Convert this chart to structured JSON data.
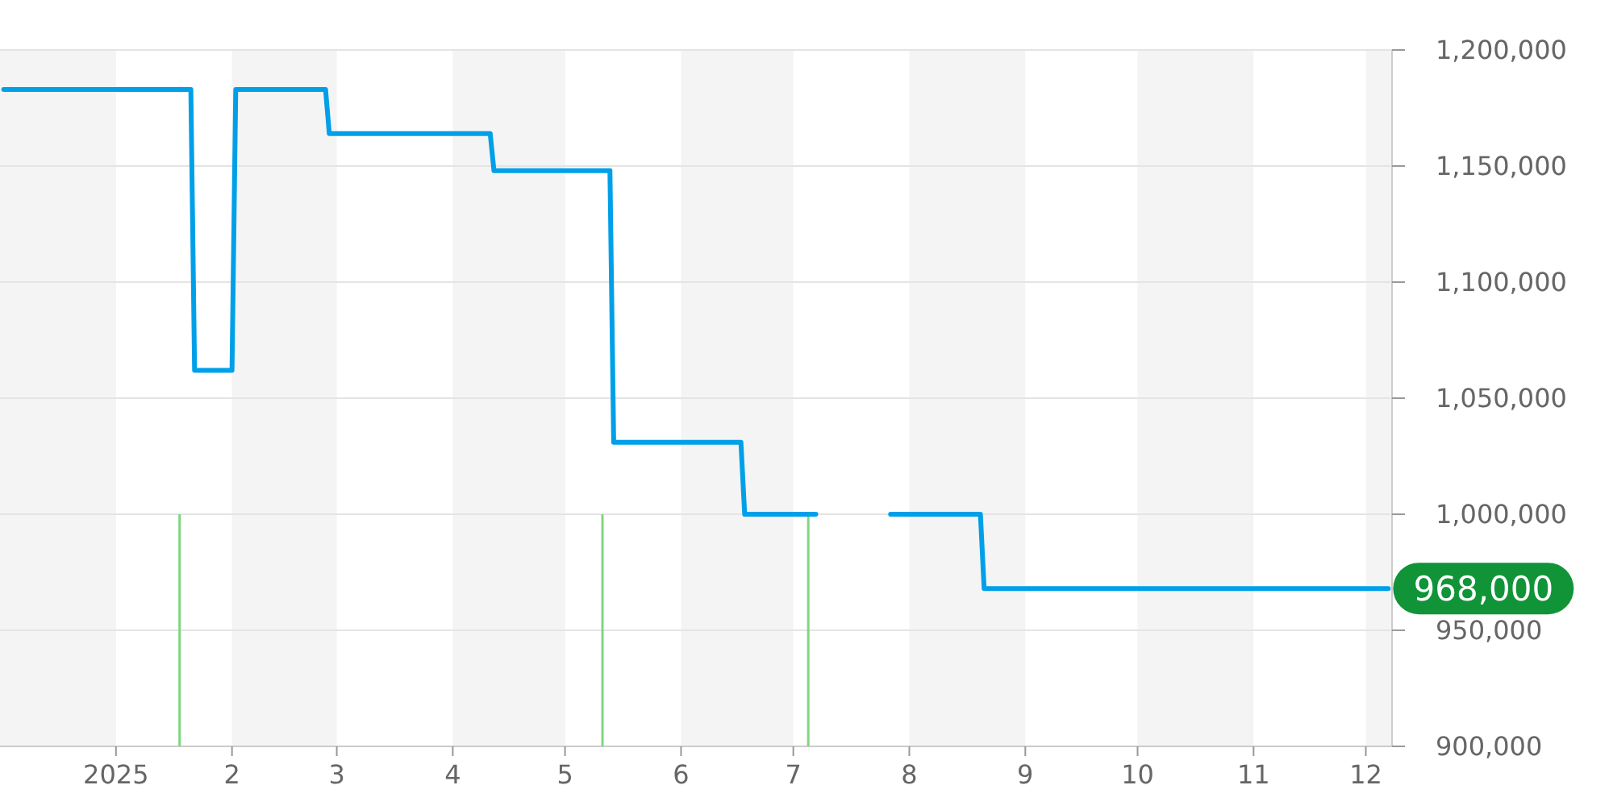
{
  "chart_data": {
    "type": "line",
    "xlim": [
      "2024-12-01",
      "2025-12-08"
    ],
    "ylim": [
      900000,
      1200000
    ],
    "xticks": [
      {
        "value": "2025-01-01",
        "label": "2025"
      },
      {
        "value": "2025-02-01",
        "label": "2"
      },
      {
        "value": "2025-03-01",
        "label": "3"
      },
      {
        "value": "2025-04-01",
        "label": "4"
      },
      {
        "value": "2025-05-01",
        "label": "5"
      },
      {
        "value": "2025-06-01",
        "label": "6"
      },
      {
        "value": "2025-07-01",
        "label": "7"
      },
      {
        "value": "2025-08-01",
        "label": "8"
      },
      {
        "value": "2025-09-01",
        "label": "9"
      },
      {
        "value": "2025-10-01",
        "label": "10"
      },
      {
        "value": "2025-11-01",
        "label": "11"
      },
      {
        "value": "2025-12-01",
        "label": "12"
      }
    ],
    "yticks": [
      {
        "value": 900000,
        "label": "900,000"
      },
      {
        "value": 950000,
        "label": "950,000"
      },
      {
        "value": 1000000,
        "label": "1,000,000"
      },
      {
        "value": 1050000,
        "label": "1,050,000"
      },
      {
        "value": 1100000,
        "label": "1,100,000"
      },
      {
        "value": 1150000,
        "label": "1,150,000"
      },
      {
        "value": 1200000,
        "label": "1,200,000"
      }
    ],
    "grid": "y",
    "bands": [
      {
        "axis": "x",
        "from": "2024-12-01",
        "to": "2025-01-01",
        "color": "#f4f4f4"
      },
      {
        "axis": "x",
        "from": "2025-02-01",
        "to": "2025-03-01",
        "color": "#f4f4f4"
      },
      {
        "axis": "x",
        "from": "2025-04-01",
        "to": "2025-05-01",
        "color": "#f4f4f4"
      },
      {
        "axis": "x",
        "from": "2025-06-01",
        "to": "2025-07-01",
        "color": "#f4f4f4"
      },
      {
        "axis": "x",
        "from": "2025-08-01",
        "to": "2025-09-01",
        "color": "#f4f4f4"
      },
      {
        "axis": "x",
        "from": "2025-10-01",
        "to": "2025-11-01",
        "color": "#f4f4f4"
      },
      {
        "axis": "x",
        "from": "2025-12-01",
        "to": "2025-12-08",
        "color": "#f4f4f4"
      }
    ],
    "series": [
      {
        "type": "bar",
        "color": "#7fd67f",
        "x": [
          "2025-01-18",
          "2025-05-11",
          "2025-07-05"
        ],
        "values": [
          1000000,
          1000000,
          1000000
        ]
      },
      {
        "color": "#00a0e9",
        "x": [
          "2024-12-02",
          "2025-01-21",
          "2025-01-22",
          "2025-02-01",
          "2025-02-02",
          "2025-02-26",
          "2025-02-27",
          "2025-04-11",
          "2025-04-12",
          "2025-05-13",
          "2025-05-14",
          "2025-06-17",
          "2025-06-18",
          "2025-07-07",
          "2025-07-17",
          "2025-07-27",
          "2025-08-20",
          "2025-08-21",
          "2025-12-07"
        ],
        "values": [
          1183000,
          1183000,
          1062000,
          1062000,
          1183000,
          1183000,
          1164000,
          1164000,
          1148000,
          1148000,
          1031000,
          1031000,
          1000000,
          1000000,
          null,
          1000000,
          1000000,
          968000,
          968000
        ]
      }
    ],
    "annotations": [
      {
        "text": "968,000",
        "x": "2025-12-07",
        "y": 968000
      }
    ]
  }
}
